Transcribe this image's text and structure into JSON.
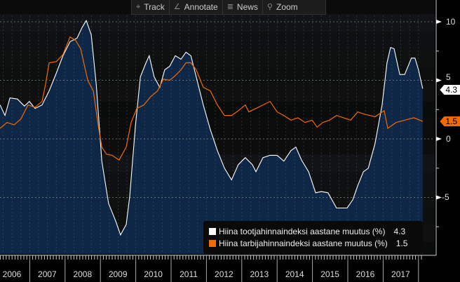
{
  "toolbar": {
    "items": [
      {
        "icon": "crosshair-icon",
        "label": "Track"
      },
      {
        "icon": "pencil-icon",
        "label": "Annotate"
      },
      {
        "icon": "news-icon",
        "label": "News"
      },
      {
        "icon": "magnifier-icon",
        "label": "Zoom"
      }
    ]
  },
  "chart_data": {
    "type": "area",
    "title": "",
    "xlabel": "",
    "ylabel": "",
    "ylim": [
      -10,
      10
    ],
    "yticks": [
      "10",
      "5",
      "0",
      "-5"
    ],
    "xticks": [
      "2006",
      "2007",
      "2008",
      "2009",
      "2010",
      "2011",
      "2012",
      "2013",
      "2014",
      "2015",
      "2016",
      "2017"
    ],
    "legend_position": "bottom-right",
    "series": [
      {
        "name": "Hiina tootjahinnaindeksi aastane muutus (%)",
        "last": "4.3",
        "color": "#ffffff",
        "style": "area",
        "x": [
          2006.16,
          2006.3,
          2006.44,
          2006.65,
          2006.85,
          2006.99,
          2007.15,
          2007.35,
          2007.55,
          2007.75,
          2007.94,
          2008.14,
          2008.34,
          2008.48,
          2008.6,
          2008.74,
          2008.88,
          2009.04,
          2009.23,
          2009.43,
          2009.57,
          2009.73,
          2009.83,
          2009.99,
          2010.13,
          2010.29,
          2010.38,
          2010.52,
          2010.68,
          2010.82,
          2010.96,
          2011.12,
          2011.28,
          2011.42,
          2011.56,
          2011.71,
          2011.91,
          2012.11,
          2012.31,
          2012.51,
          2012.71,
          2012.9,
          2013.1,
          2013.3,
          2013.4,
          2013.6,
          2013.8,
          2014.0,
          2014.19,
          2014.39,
          2014.53,
          2014.69,
          2014.89,
          2015.09,
          2015.25,
          2015.44,
          2015.68,
          2015.98,
          2016.14,
          2016.28,
          2016.44,
          2016.58,
          2016.77,
          2016.97,
          2017.11,
          2017.21,
          2017.31,
          2017.47,
          2017.61,
          2017.8,
          2017.9,
          2018.0,
          2018.12
        ],
        "y": [
          2.9,
          2.0,
          3.5,
          3.4,
          2.8,
          3.2,
          2.6,
          2.9,
          4.1,
          5.6,
          7.1,
          8.3,
          8.6,
          9.5,
          10.1,
          8.9,
          4.7,
          -1.9,
          -5.5,
          -7.0,
          -8.2,
          -7.3,
          -4.9,
          1.1,
          5.3,
          6.5,
          7.1,
          5.3,
          4.4,
          5.9,
          6.2,
          7.1,
          6.8,
          7.4,
          7.1,
          5.3,
          2.9,
          0.8,
          -1.0,
          -2.5,
          -3.5,
          -2.2,
          -1.6,
          -2.2,
          -2.8,
          -1.6,
          -1.4,
          -1.4,
          -1.9,
          -1.0,
          -0.7,
          -1.8,
          -2.8,
          -4.6,
          -4.5,
          -4.6,
          -5.9,
          -5.9,
          -5.2,
          -4.0,
          -2.8,
          -2.5,
          -0.4,
          2.9,
          6.5,
          7.8,
          7.7,
          5.5,
          5.5,
          6.9,
          6.9,
          5.9,
          4.3
        ]
      },
      {
        "name": "Hiina tarbijahinnaindeksi aastane muutus (%)",
        "last": "1.5",
        "color": "#f26b00",
        "style": "line",
        "x": [
          2006.16,
          2006.36,
          2006.56,
          2006.75,
          2006.95,
          2007.15,
          2007.35,
          2007.45,
          2007.55,
          2007.75,
          2007.94,
          2008.14,
          2008.3,
          2008.44,
          2008.64,
          2008.8,
          2008.94,
          2009.04,
          2009.17,
          2009.33,
          2009.53,
          2009.73,
          2009.87,
          2010.03,
          2010.23,
          2010.42,
          2010.62,
          2010.78,
          2010.96,
          2011.12,
          2011.28,
          2011.42,
          2011.56,
          2011.71,
          2011.91,
          2012.11,
          2012.31,
          2012.51,
          2012.71,
          2012.9,
          2013.1,
          2013.2,
          2013.4,
          2013.6,
          2013.8,
          2014.0,
          2014.19,
          2014.39,
          2014.59,
          2014.79,
          2014.99,
          2015.13,
          2015.29,
          2015.48,
          2015.68,
          2015.88,
          2016.08,
          2016.28,
          2016.48,
          2016.77,
          2017.03,
          2017.13,
          2017.37,
          2017.61,
          2017.87,
          2018.12
        ],
        "y": [
          0.9,
          1.4,
          1.2,
          1.7,
          2.9,
          2.7,
          3.2,
          4.7,
          6.5,
          6.6,
          7.2,
          8.7,
          8.4,
          7.7,
          5.0,
          4.1,
          1.1,
          -0.7,
          -1.3,
          -1.4,
          -1.8,
          -0.7,
          1.4,
          2.6,
          2.9,
          3.6,
          4.1,
          5.1,
          5.0,
          5.4,
          5.9,
          6.5,
          6.5,
          5.9,
          4.4,
          4.1,
          2.9,
          2.0,
          2.0,
          2.4,
          2.9,
          2.3,
          2.6,
          2.9,
          3.2,
          2.3,
          2.0,
          1.6,
          1.8,
          1.4,
          1.6,
          1.0,
          1.4,
          1.6,
          2.0,
          1.8,
          1.6,
          2.3,
          2.1,
          1.9,
          2.4,
          0.9,
          1.4,
          1.6,
          1.8,
          1.5
        ]
      }
    ]
  }
}
